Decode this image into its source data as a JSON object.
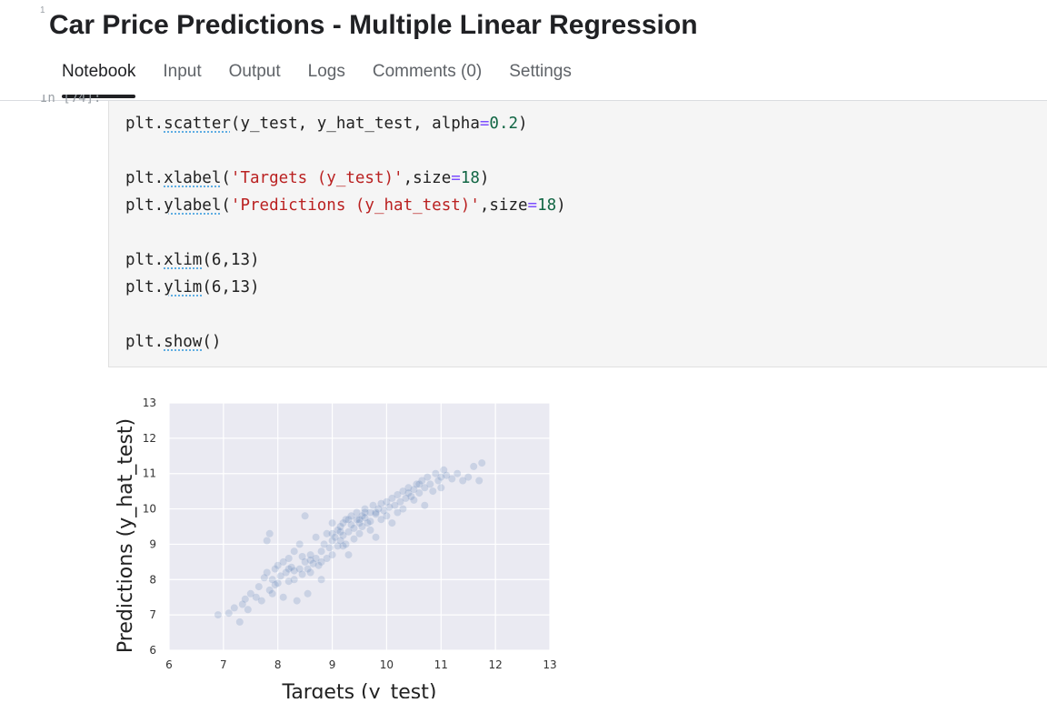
{
  "header": {
    "marker": "1",
    "title": "Car Price Predictions - Multiple Linear Regression"
  },
  "tabs": [
    {
      "label": "Notebook",
      "active": true
    },
    {
      "label": "Input",
      "active": false
    },
    {
      "label": "Output",
      "active": false
    },
    {
      "label": "Logs",
      "active": false
    },
    {
      "label": "Comments (0)",
      "active": false
    },
    {
      "label": "Settings",
      "active": false
    }
  ],
  "cell": {
    "prompt": "In [74]:",
    "code_lines": [
      "plt.scatter(y_test, y_hat_test, alpha=0.2)",
      "",
      "plt.xlabel('Targets (y_test)',size=18)",
      "plt.ylabel('Predictions (y_hat_test)',size=18)",
      "",
      "plt.xlim(6,13)",
      "plt.ylim(6,13)",
      "",
      "plt.show()"
    ]
  },
  "colors": {
    "plot_background": "#eaeaf2",
    "grid": "#ffffff",
    "points": "#4c72b0"
  },
  "chart_data": {
    "type": "scatter",
    "xlabel": "Targets (y_test)",
    "ylabel": "Predictions (y_hat_test)",
    "xlim": [
      6,
      13
    ],
    "ylim": [
      6,
      13
    ],
    "xticks": [
      "6",
      "7",
      "8",
      "9",
      "10",
      "11",
      "12",
      "13"
    ],
    "yticks": [
      "6",
      "7",
      "8",
      "9",
      "10",
      "11",
      "12",
      "13"
    ],
    "grid": true,
    "alpha": 0.2,
    "points": [
      [
        6.9,
        7.0
      ],
      [
        7.1,
        7.05
      ],
      [
        7.2,
        7.2
      ],
      [
        7.3,
        6.8
      ],
      [
        7.35,
        7.3
      ],
      [
        7.4,
        7.45
      ],
      [
        7.45,
        7.15
      ],
      [
        7.5,
        7.6
      ],
      [
        7.6,
        7.5
      ],
      [
        7.65,
        7.8
      ],
      [
        7.7,
        7.4
      ],
      [
        7.75,
        8.05
      ],
      [
        7.8,
        8.2
      ],
      [
        7.8,
        9.1
      ],
      [
        7.85,
        9.3
      ],
      [
        7.85,
        7.7
      ],
      [
        7.9,
        8.0
      ],
      [
        7.9,
        7.6
      ],
      [
        7.95,
        8.3
      ],
      [
        8.0,
        8.4
      ],
      [
        8.0,
        7.9
      ],
      [
        8.05,
        8.1
      ],
      [
        8.1,
        8.5
      ],
      [
        8.1,
        7.5
      ],
      [
        8.15,
        8.2
      ],
      [
        8.2,
        8.6
      ],
      [
        8.2,
        7.95
      ],
      [
        8.25,
        8.35
      ],
      [
        8.3,
        8.0
      ],
      [
        8.3,
        8.8
      ],
      [
        8.35,
        7.4
      ],
      [
        8.4,
        8.3
      ],
      [
        8.4,
        9.0
      ],
      [
        8.45,
        8.15
      ],
      [
        8.5,
        8.5
      ],
      [
        8.5,
        9.8
      ],
      [
        8.55,
        7.6
      ],
      [
        8.55,
        8.3
      ],
      [
        8.6,
        8.7
      ],
      [
        8.6,
        8.2
      ],
      [
        8.65,
        8.45
      ],
      [
        8.7,
        8.6
      ],
      [
        8.7,
        9.2
      ],
      [
        8.75,
        8.4
      ],
      [
        8.8,
        8.8
      ],
      [
        8.8,
        8.0
      ],
      [
        8.85,
        9.0
      ],
      [
        8.9,
        8.6
      ],
      [
        8.9,
        9.3
      ],
      [
        8.95,
        8.9
      ],
      [
        9.0,
        9.1
      ],
      [
        9.0,
        8.7
      ],
      [
        9.0,
        9.6
      ],
      [
        9.05,
        9.2
      ],
      [
        9.1,
        9.4
      ],
      [
        9.1,
        8.95
      ],
      [
        9.15,
        9.5
      ],
      [
        9.15,
        9.1
      ],
      [
        9.2,
        9.6
      ],
      [
        9.2,
        9.25
      ],
      [
        9.25,
        9.0
      ],
      [
        9.25,
        9.7
      ],
      [
        9.3,
        9.35
      ],
      [
        9.3,
        8.7
      ],
      [
        9.35,
        9.55
      ],
      [
        9.35,
        9.8
      ],
      [
        9.4,
        9.45
      ],
      [
        9.4,
        9.15
      ],
      [
        9.45,
        9.7
      ],
      [
        9.45,
        9.9
      ],
      [
        9.5,
        9.6
      ],
      [
        9.5,
        9.3
      ],
      [
        9.55,
        9.8
      ],
      [
        9.55,
        9.5
      ],
      [
        9.6,
        9.75
      ],
      [
        9.6,
        10.0
      ],
      [
        9.65,
        9.6
      ],
      [
        9.7,
        9.9
      ],
      [
        9.7,
        9.4
      ],
      [
        9.75,
        10.1
      ],
      [
        9.8,
        9.85
      ],
      [
        9.8,
        9.2
      ],
      [
        9.85,
        10.0
      ],
      [
        9.9,
        10.15
      ],
      [
        9.9,
        9.7
      ],
      [
        9.95,
        9.95
      ],
      [
        10.0,
        10.2
      ],
      [
        10.0,
        9.8
      ],
      [
        10.05,
        10.05
      ],
      [
        10.1,
        10.3
      ],
      [
        10.1,
        9.6
      ],
      [
        10.15,
        10.1
      ],
      [
        10.2,
        10.4
      ],
      [
        10.2,
        9.9
      ],
      [
        10.25,
        10.2
      ],
      [
        10.3,
        10.5
      ],
      [
        10.3,
        10.0
      ],
      [
        10.35,
        10.3
      ],
      [
        10.4,
        10.6
      ],
      [
        10.45,
        10.35
      ],
      [
        10.5,
        10.55
      ],
      [
        10.5,
        10.25
      ],
      [
        10.55,
        10.7
      ],
      [
        10.6,
        10.45
      ],
      [
        10.65,
        10.8
      ],
      [
        10.7,
        10.6
      ],
      [
        10.7,
        10.1
      ],
      [
        10.75,
        10.9
      ],
      [
        10.8,
        10.7
      ],
      [
        10.85,
        10.5
      ],
      [
        10.9,
        11.0
      ],
      [
        10.95,
        10.8
      ],
      [
        11.0,
        10.9
      ],
      [
        11.0,
        10.6
      ],
      [
        11.05,
        11.1
      ],
      [
        11.1,
        10.95
      ],
      [
        11.2,
        10.85
      ],
      [
        11.3,
        11.0
      ],
      [
        11.4,
        10.8
      ],
      [
        11.5,
        10.9
      ],
      [
        11.6,
        11.2
      ],
      [
        11.7,
        10.8
      ],
      [
        11.75,
        11.3
      ],
      [
        9.3,
        9.7
      ],
      [
        9.6,
        9.9
      ],
      [
        9.0,
        9.3
      ],
      [
        8.8,
        8.5
      ],
      [
        9.2,
        8.95
      ],
      [
        9.8,
        9.9
      ],
      [
        10.4,
        10.45
      ],
      [
        8.3,
        8.25
      ],
      [
        7.95,
        7.85
      ],
      [
        8.6,
        8.55
      ],
      [
        9.5,
        9.7
      ],
      [
        9.7,
        9.65
      ],
      [
        10.6,
        10.7
      ],
      [
        8.45,
        8.65
      ],
      [
        9.15,
        9.35
      ],
      [
        8.2,
        8.3
      ]
    ]
  }
}
